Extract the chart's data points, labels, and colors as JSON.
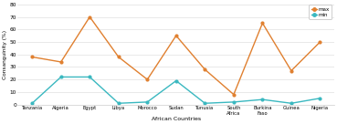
{
  "categories": [
    "Tanzania",
    "Algeria",
    "Egypt",
    "Libya",
    "Morocco",
    "Sudan",
    "Tunusia",
    "South\nAfrica",
    "Burkina\nFaso",
    "Guinea",
    "Nigeria"
  ],
  "max_values": [
    38,
    34,
    70,
    38,
    20,
    55,
    28,
    8,
    65,
    27,
    50
  ],
  "min_values": [
    1,
    22,
    22,
    1,
    2,
    19,
    1,
    2,
    4,
    1,
    5
  ],
  "max_color": "#e08030",
  "min_color": "#3ab8c0",
  "xlabel": "African Countries",
  "ylabel": "Consanguinity (%)",
  "ylim": [
    0,
    80
  ],
  "yticks": [
    0,
    10,
    20,
    30,
    40,
    50,
    60,
    70,
    80
  ],
  "legend_labels": [
    "max",
    "min"
  ],
  "bg_color": "#ffffff",
  "grid_color": "#e0e0e0"
}
